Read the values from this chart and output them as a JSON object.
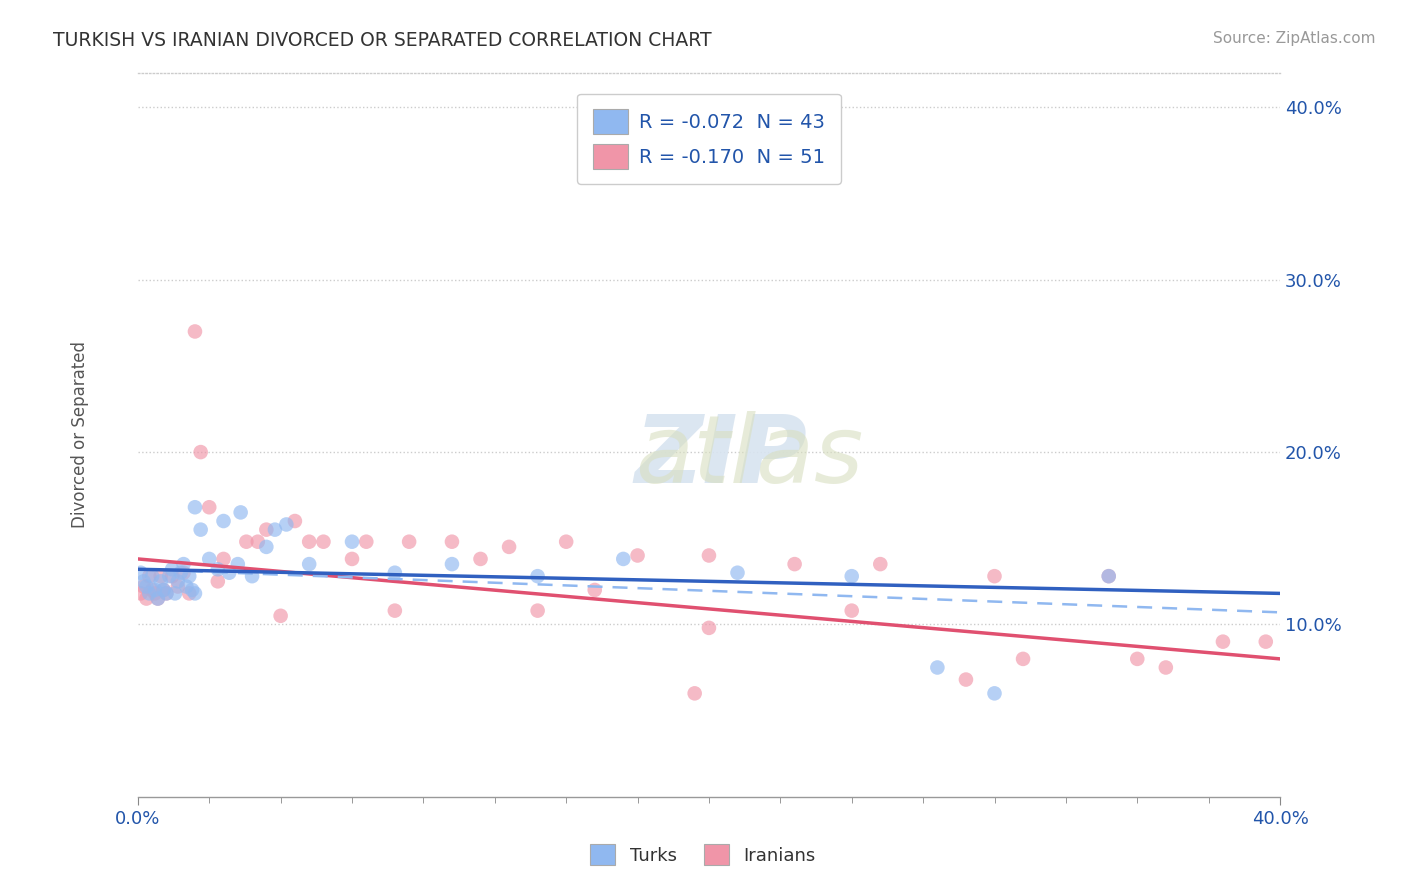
{
  "title": "TURKISH VS IRANIAN DIVORCED OR SEPARATED CORRELATION CHART",
  "source": "Source: ZipAtlas.com",
  "ylabel": "Divorced or Separated",
  "xlim": [
    0.0,
    0.4
  ],
  "ylim": [
    0.0,
    0.42
  ],
  "xtick_labels": [
    "0.0%",
    "40.0%"
  ],
  "ytick_labels": [
    "10.0%",
    "20.0%",
    "30.0%",
    "40.0%"
  ],
  "ytick_positions": [
    0.1,
    0.2,
    0.3,
    0.4
  ],
  "turks_R": -0.072,
  "turks_N": 43,
  "iranians_R": -0.17,
  "iranians_N": 51,
  "turks_color": "#90b8f0",
  "iranians_color": "#f095a8",
  "turks_line_color": "#3060c0",
  "iranians_line_color": "#e05070",
  "turks_dash_color": "#90b8f0",
  "legend_color": "#2255aa",
  "turks_scatter": {
    "x": [
      0.001,
      0.002,
      0.003,
      0.004,
      0.005,
      0.006,
      0.007,
      0.008,
      0.009,
      0.01,
      0.011,
      0.012,
      0.013,
      0.014,
      0.015,
      0.016,
      0.017,
      0.018,
      0.019,
      0.02,
      0.022,
      0.025,
      0.028,
      0.032,
      0.036,
      0.04,
      0.045,
      0.052,
      0.06,
      0.075,
      0.09,
      0.11,
      0.14,
      0.17,
      0.21,
      0.25,
      0.3,
      0.34,
      0.02,
      0.03,
      0.035,
      0.048,
      0.28
    ],
    "y": [
      0.13,
      0.125,
      0.122,
      0.118,
      0.128,
      0.12,
      0.115,
      0.125,
      0.12,
      0.118,
      0.128,
      0.132,
      0.118,
      0.125,
      0.13,
      0.135,
      0.122,
      0.128,
      0.12,
      0.168,
      0.155,
      0.138,
      0.132,
      0.13,
      0.165,
      0.128,
      0.145,
      0.158,
      0.135,
      0.148,
      0.13,
      0.135,
      0.128,
      0.138,
      0.13,
      0.128,
      0.06,
      0.128,
      0.118,
      0.16,
      0.135,
      0.155,
      0.075
    ]
  },
  "iranians_scatter": {
    "x": [
      0.001,
      0.002,
      0.003,
      0.004,
      0.005,
      0.006,
      0.007,
      0.008,
      0.009,
      0.01,
      0.012,
      0.014,
      0.016,
      0.018,
      0.02,
      0.022,
      0.025,
      0.03,
      0.038,
      0.045,
      0.055,
      0.065,
      0.08,
      0.095,
      0.11,
      0.13,
      0.15,
      0.175,
      0.2,
      0.23,
      0.26,
      0.3,
      0.34,
      0.38,
      0.395,
      0.028,
      0.042,
      0.06,
      0.075,
      0.12,
      0.16,
      0.2,
      0.25,
      0.31,
      0.36,
      0.05,
      0.09,
      0.14,
      0.29,
      0.35,
      0.195
    ],
    "y": [
      0.118,
      0.122,
      0.115,
      0.128,
      0.12,
      0.118,
      0.115,
      0.128,
      0.12,
      0.118,
      0.128,
      0.122,
      0.13,
      0.118,
      0.27,
      0.2,
      0.168,
      0.138,
      0.148,
      0.155,
      0.16,
      0.148,
      0.148,
      0.148,
      0.148,
      0.145,
      0.148,
      0.14,
      0.14,
      0.135,
      0.135,
      0.128,
      0.128,
      0.09,
      0.09,
      0.125,
      0.148,
      0.148,
      0.138,
      0.138,
      0.12,
      0.098,
      0.108,
      0.08,
      0.075,
      0.105,
      0.108,
      0.108,
      0.068,
      0.08,
      0.06
    ]
  },
  "turks_line": {
    "x0": 0.0,
    "y0": 0.132,
    "x1": 0.4,
    "y1": 0.118
  },
  "iranians_line": {
    "x0": 0.0,
    "y0": 0.138,
    "x1": 0.4,
    "y1": 0.08
  },
  "turks_dash_line": {
    "x0": 0.0,
    "y0": 0.132,
    "x1": 0.4,
    "y1": 0.107
  }
}
